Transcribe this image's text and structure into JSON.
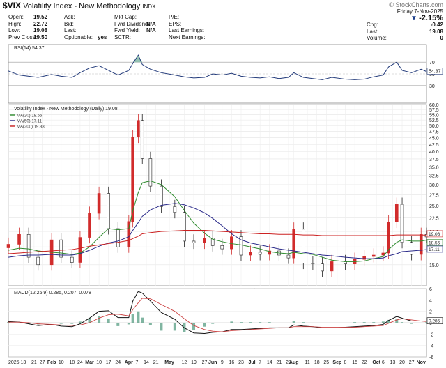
{
  "header": {
    "symbol": "$VIX",
    "name": "Volatility Index - New Methodology",
    "exchange": "INDX",
    "watermark": "© StockCharts.com",
    "quote_col1": [
      {
        "label": "Open:",
        "value": "19.52"
      },
      {
        "label": "High:",
        "value": "22.72"
      },
      {
        "label": "Low:",
        "value": "19.08"
      },
      {
        "label": "Prev Close:",
        "value": "19.50"
      }
    ],
    "quote_col2": [
      {
        "label": "Ask:",
        "value": ""
      },
      {
        "label": "Bid:",
        "value": ""
      },
      {
        "label": "Last:",
        "value": ""
      },
      {
        "label": "Optionable:",
        "value": "yes"
      }
    ],
    "quote_col3": [
      {
        "label": "Mkt Cap:",
        "value": ""
      },
      {
        "label": "Fwd Dividend:",
        "value": "N/A"
      },
      {
        "label": "Fwd Yield:",
        "value": "N/A"
      },
      {
        "label": "SCTR:",
        "value": ""
      }
    ],
    "quote_col4": [
      {
        "label": "P/E:",
        "value": ""
      },
      {
        "label": "EPS:",
        "value": ""
      },
      {
        "label": "Last Earnings:",
        "value": ""
      },
      {
        "label": "Next Earnings:",
        "value": ""
      }
    ],
    "date": "Friday  7-Nov-2025",
    "change_pct": "-2.15%",
    "right_quote": [
      {
        "label": "Chg:",
        "value": "-0.42"
      },
      {
        "label": "Last:",
        "value": "19.08"
      },
      {
        "label": "Volume:",
        "value": "0"
      }
    ]
  },
  "chart_data": [
    {
      "type": "line",
      "panel": "RSI",
      "title": "RSI(14) 54.37",
      "ylim": [
        0,
        100
      ],
      "y_ticks": [
        30,
        50,
        70
      ],
      "last_label": "54.37",
      "x": [
        "2025-01-02",
        "2025-01-10",
        "2025-01-17",
        "2025-01-24",
        "2025-02-03",
        "2025-02-10",
        "2025-02-18",
        "2025-02-24",
        "2025-03-03",
        "2025-03-10",
        "2025-03-17",
        "2025-03-24",
        "2025-04-01",
        "2025-04-04",
        "2025-04-08",
        "2025-04-11",
        "2025-04-17",
        "2025-04-25",
        "2025-05-05",
        "2025-05-12",
        "2025-05-19",
        "2025-05-27",
        "2025-06-02",
        "2025-06-09",
        "2025-06-16",
        "2025-06-23",
        "2025-06-30",
        "2025-07-07",
        "2025-07-14",
        "2025-07-21",
        "2025-07-28",
        "2025-08-01",
        "2025-08-08",
        "2025-08-15",
        "2025-08-22",
        "2025-08-29",
        "2025-09-08",
        "2025-09-15",
        "2025-09-22",
        "2025-09-29",
        "2025-10-06",
        "2025-10-10",
        "2025-10-16",
        "2025-10-20",
        "2025-10-27",
        "2025-11-03",
        "2025-11-07"
      ],
      "values": [
        55,
        48,
        46,
        44,
        49,
        46,
        44,
        52,
        60,
        64,
        56,
        48,
        56,
        68,
        82,
        66,
        58,
        52,
        48,
        45,
        43,
        44,
        50,
        48,
        51,
        46,
        44,
        43,
        45,
        42,
        44,
        52,
        44,
        42,
        40,
        44,
        41,
        40,
        41,
        45,
        48,
        62,
        70,
        56,
        52,
        58,
        54
      ]
    },
    {
      "type": "line",
      "panel": "Price",
      "title": "Volatility Index - New Methodology (Daily) 19.08",
      "ylim": [
        12.5,
        60
      ],
      "y_scale": "log",
      "y_ticks": [
        15.0,
        17.5,
        20.0,
        22.5,
        25.0,
        27.5,
        30.0,
        32.5,
        35.0,
        37.5,
        40.0,
        42.5,
        45.0,
        47.5,
        50.0,
        52.5,
        55.0,
        57.5,
        60.0
      ],
      "x_ticks": [
        "2025",
        "13",
        "21",
        "27",
        "Feb",
        "10",
        "18",
        "24",
        "Mar",
        "10",
        "17",
        "24",
        "Apr",
        "7",
        "14",
        "21",
        "May",
        "12",
        "19",
        "27",
        "Jun",
        "9",
        "16",
        "23",
        "Jul",
        "7",
        "14",
        "21",
        "28",
        "Aug",
        "11",
        "18",
        "25",
        "Sep",
        "8",
        "15",
        "22",
        "Oct",
        "6",
        "13",
        "20",
        "27",
        "Nov"
      ],
      "series": [
        {
          "name": "VIX",
          "x": [
            "2025-01-02",
            "2025-01-10",
            "2025-01-17",
            "2025-01-24",
            "2025-02-03",
            "2025-02-10",
            "2025-02-18",
            "2025-02-24",
            "2025-03-03",
            "2025-03-10",
            "2025-03-17",
            "2025-03-24",
            "2025-04-01",
            "2025-04-04",
            "2025-04-08",
            "2025-04-11",
            "2025-04-17",
            "2025-04-25",
            "2025-05-05",
            "2025-05-12",
            "2025-05-19",
            "2025-05-27",
            "2025-06-02",
            "2025-06-09",
            "2025-06-16",
            "2025-06-23",
            "2025-06-30",
            "2025-07-07",
            "2025-07-14",
            "2025-07-21",
            "2025-07-28",
            "2025-08-01",
            "2025-08-08",
            "2025-08-15",
            "2025-08-22",
            "2025-08-29",
            "2025-09-08",
            "2025-09-15",
            "2025-09-22",
            "2025-09-29",
            "2025-10-06",
            "2025-10-10",
            "2025-10-16",
            "2025-10-20",
            "2025-10-27",
            "2025-11-03",
            "2025-11-07"
          ],
          "values": [
            17.9,
            19.5,
            16.0,
            15.0,
            18.6,
            16.0,
            15.3,
            19.0,
            23.4,
            27.8,
            20.5,
            17.5,
            21.8,
            45.3,
            52.3,
            37.6,
            29.6,
            24.8,
            23.6,
            18.4,
            18.1,
            18.9,
            17.7,
            17.2,
            19.1,
            16.3,
            16.7,
            16.4,
            16.9,
            16.3,
            15.9,
            20.4,
            15.2,
            15.1,
            14.2,
            15.4,
            15.1,
            15.7,
            16.1,
            16.3,
            16.6,
            21.7,
            25.3,
            18.2,
            16.4,
            19.5,
            19.08
          ]
        },
        {
          "name": "MA(20) 18.56",
          "values": [
            17.0,
            17.3,
            17.2,
            16.9,
            16.7,
            16.6,
            16.4,
            16.6,
            17.5,
            19.0,
            20.5,
            20.3,
            20.5,
            24.0,
            28.0,
            30.5,
            31.0,
            30.0,
            27.0,
            24.0,
            21.5,
            19.7,
            18.7,
            18.3,
            18.0,
            17.8,
            17.5,
            17.2,
            16.8,
            16.6,
            16.5,
            16.7,
            16.5,
            16.4,
            16.0,
            15.6,
            15.4,
            15.4,
            15.5,
            15.8,
            16.1,
            17.1,
            18.2,
            18.6,
            18.4,
            18.4,
            18.56
          ]
        },
        {
          "name": "MA(50) 17.11",
          "values": [
            16.0,
            16.2,
            16.3,
            16.3,
            16.4,
            16.3,
            16.3,
            16.5,
            17.0,
            17.6,
            18.1,
            18.4,
            19.1,
            20.2,
            21.6,
            22.8,
            24.1,
            25.1,
            25.5,
            25.2,
            24.5,
            23.5,
            22.4,
            21.0,
            19.6,
            18.6,
            18.1,
            17.8,
            17.5,
            17.2,
            17.0,
            16.9,
            16.7,
            16.5,
            16.3,
            16.2,
            16.0,
            15.9,
            15.8,
            15.8,
            15.9,
            16.2,
            16.5,
            16.8,
            16.9,
            17.0,
            17.11
          ]
        },
        {
          "name": "MA(200) 19.38",
          "values": [
            16.5,
            16.6,
            16.7,
            16.8,
            16.9,
            17.0,
            17.1,
            17.3,
            17.6,
            17.8,
            18.0,
            18.2,
            18.5,
            18.8,
            19.2,
            19.6,
            19.8,
            20.0,
            20.1,
            20.2,
            20.2,
            20.2,
            20.1,
            20.0,
            19.9,
            19.8,
            19.7,
            19.6,
            19.6,
            19.5,
            19.5,
            19.5,
            19.4,
            19.4,
            19.3,
            19.3,
            19.3,
            19.3,
            19.3,
            19.3,
            19.3,
            19.3,
            19.4,
            19.4,
            19.4,
            19.4,
            19.38
          ]
        }
      ],
      "last_labels": [
        "19.08",
        "18.56",
        "17.11"
      ]
    },
    {
      "type": "line",
      "panel": "MACD",
      "title": "MACD(12,26,9) 0.285, 0.207, 0.078",
      "ylim": [
        -6,
        6
      ],
      "y_ticks": [
        -6,
        -4,
        -2,
        0,
        2,
        4,
        6
      ],
      "last_label": "0.285",
      "x_ticks": [
        "2025",
        "13",
        "21",
        "27",
        "Feb",
        "10",
        "18",
        "24",
        "Mar",
        "10",
        "17",
        "24",
        "Apr",
        "7",
        "14",
        "21",
        "May",
        "12",
        "19",
        "27",
        "Jun",
        "9",
        "16",
        "23",
        "Jul",
        "7",
        "14",
        "21",
        "28",
        "Aug",
        "11",
        "18",
        "25",
        "Sep",
        "8",
        "15",
        "22",
        "Oct",
        "6",
        "13",
        "20",
        "27",
        "Nov"
      ],
      "series": [
        {
          "name": "MACD",
          "values": [
            0.2,
            0.1,
            -0.2,
            -0.5,
            -0.3,
            -0.6,
            -0.7,
            -0.2,
            0.8,
            2.0,
            2.1,
            0.9,
            0.9,
            3.8,
            5.5,
            5.2,
            3.8,
            1.8,
            0.6,
            -0.9,
            -1.8,
            -1.9,
            -1.7,
            -1.6,
            -1.2,
            -1.2,
            -1.1,
            -1.0,
            -0.9,
            -0.9,
            -0.9,
            -0.4,
            -0.6,
            -0.7,
            -0.9,
            -0.9,
            -0.8,
            -0.7,
            -0.6,
            -0.5,
            -0.3,
            0.4,
            1.1,
            0.8,
            0.3,
            0.3,
            0.285
          ]
        },
        {
          "name": "Signal",
          "values": [
            0.1,
            0.1,
            0.0,
            -0.2,
            -0.3,
            -0.4,
            -0.5,
            -0.4,
            0.0,
            0.8,
            1.4,
            1.5,
            1.2,
            2.3,
            3.5,
            4.3,
            4.2,
            3.2,
            2.0,
            0.7,
            -0.5,
            -1.2,
            -1.5,
            -1.6,
            -1.4,
            -1.3,
            -1.2,
            -1.1,
            -1.0,
            -0.9,
            -0.9,
            -0.7,
            -0.7,
            -0.7,
            -0.8,
            -0.8,
            -0.8,
            -0.8,
            -0.7,
            -0.6,
            -0.5,
            -0.1,
            0.5,
            0.7,
            0.5,
            0.3,
            0.207
          ]
        }
      ]
    }
  ]
}
